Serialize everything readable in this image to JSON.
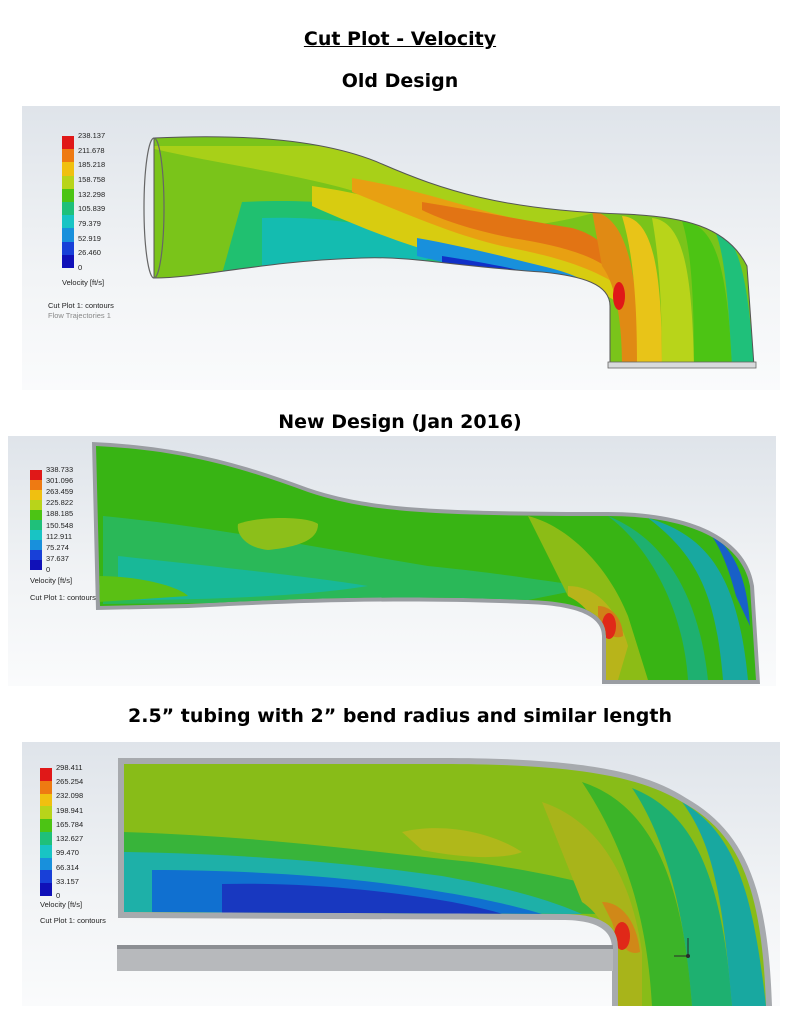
{
  "title": "Cut Plot - Velocity",
  "legend_colors": [
    "#e01818",
    "#ee7a12",
    "#f0c010",
    "#b8d41a",
    "#4cc414",
    "#1fc07a",
    "#18c4c4",
    "#1890dc",
    "#1840d8",
    "#1010b8"
  ],
  "panels": [
    {
      "heading": "Old Design",
      "legend_title": "Velocity [ft/s]",
      "ticks": [
        "238.137",
        "211.678",
        "185.218",
        "158.758",
        "132.298",
        "105.839",
        "79.379",
        "52.919",
        "26.460",
        "0"
      ],
      "captions": [
        "Cut Plot 1: contours",
        "Flow Trajectories 1"
      ]
    },
    {
      "heading": "New Design (Jan 2016)",
      "legend_title": "Velocity [ft/s]",
      "ticks": [
        "338.733",
        "301.096",
        "263.459",
        "225.822",
        "188.185",
        "150.548",
        "112.911",
        "75.274",
        "37.637",
        "0"
      ],
      "captions": [
        "Cut Plot 1: contours"
      ]
    },
    {
      "heading": "2.5” tubing with 2” bend radius and similar length",
      "legend_title": "Velocity [ft/s]",
      "ticks": [
        "298.411",
        "265.254",
        "232.098",
        "198.941",
        "165.784",
        "132.627",
        "99.470",
        "66.314",
        "33.157",
        "0"
      ],
      "captions": [
        "Cut Plot 1: contours"
      ]
    }
  ]
}
